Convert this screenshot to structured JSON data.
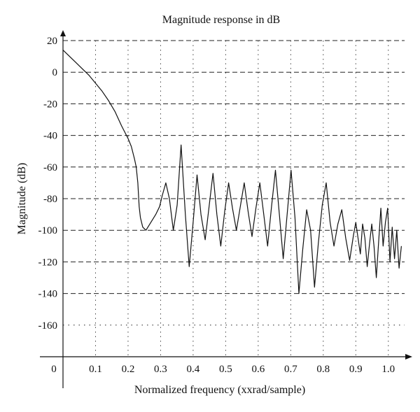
{
  "chart_data": {
    "type": "line",
    "title": "Magnitude response in dB",
    "xlabel": "Normalized frequency (xxrad/sample)",
    "ylabel": "Magnitude (dB)",
    "xlim": [
      0,
      1.05
    ],
    "ylim": [
      -180,
      20
    ],
    "x_ticks": [
      "0.1",
      "0.2",
      "0.3",
      "0.4",
      "0.5",
      "0.6",
      "0.7",
      "0.8",
      "0.9",
      "1.0"
    ],
    "x_tick_values": [
      0.1,
      0.2,
      0.3,
      0.4,
      0.5,
      0.6,
      0.7,
      0.8,
      0.9,
      1.0
    ],
    "x_origin_label": "0",
    "y_ticks": [
      "20",
      "0",
      "-20",
      "-40",
      "-60",
      "-80",
      "-100",
      "-120",
      "-140",
      "-160"
    ],
    "y_tick_values": [
      20,
      0,
      -20,
      -40,
      -60,
      -80,
      -100,
      -120,
      -140,
      -160
    ],
    "grid": true,
    "series": [
      {
        "name": "",
        "color": "#111111",
        "x": [
          0.0,
          0.02,
          0.04,
          0.06,
          0.08,
          0.1,
          0.12,
          0.14,
          0.16,
          0.18,
          0.2,
          0.21,
          0.22,
          0.225,
          0.23,
          0.234,
          0.238,
          0.245,
          0.255,
          0.27,
          0.285,
          0.297,
          0.305,
          0.316,
          0.327,
          0.339,
          0.351,
          0.363,
          0.376,
          0.388,
          0.4,
          0.412,
          0.424,
          0.437,
          0.449,
          0.461,
          0.473,
          0.485,
          0.497,
          0.509,
          0.521,
          0.533,
          0.545,
          0.557,
          0.569,
          0.581,
          0.593,
          0.605,
          0.617,
          0.629,
          0.641,
          0.653,
          0.665,
          0.677,
          0.689,
          0.701,
          0.713,
          0.725,
          0.737,
          0.749,
          0.761,
          0.773,
          0.785,
          0.797,
          0.809,
          0.821,
          0.833,
          0.845,
          0.857,
          0.869,
          0.881,
          0.893,
          0.9,
          0.907,
          0.914,
          0.921,
          0.928,
          0.935,
          0.942,
          0.949,
          0.956,
          0.963,
          0.97,
          0.977,
          0.984,
          0.991,
          0.998,
          1.005,
          1.012,
          1.019,
          1.026,
          1.033,
          1.04
        ],
        "y": [
          14,
          10,
          6,
          2,
          -2,
          -7,
          -12,
          -18,
          -25,
          -34,
          -42,
          -47,
          -55,
          -60,
          -70,
          -85,
          -92,
          -98,
          -100,
          -95,
          -90,
          -85,
          -78,
          -70,
          -80,
          -100,
          -84,
          -46,
          -90,
          -123,
          -95,
          -65,
          -90,
          -106,
          -85,
          -64,
          -90,
          -110,
          -88,
          -70,
          -86,
          -100,
          -85,
          -70,
          -88,
          -104,
          -86,
          -70,
          -90,
          -110,
          -85,
          -62,
          -90,
          -118,
          -90,
          -62,
          -92,
          -140,
          -112,
          -87,
          -100,
          -136,
          -108,
          -84,
          -70,
          -95,
          -110,
          -96,
          -87,
          -105,
          -119,
          -103,
          -95,
          -105,
          -115,
          -96,
          -105,
          -123,
          -109,
          -96,
          -110,
          -130,
          -108,
          -86,
          -110,
          -95,
          -86,
          -120,
          -98,
          -118,
          -100,
          -124,
          -110
        ]
      }
    ]
  }
}
